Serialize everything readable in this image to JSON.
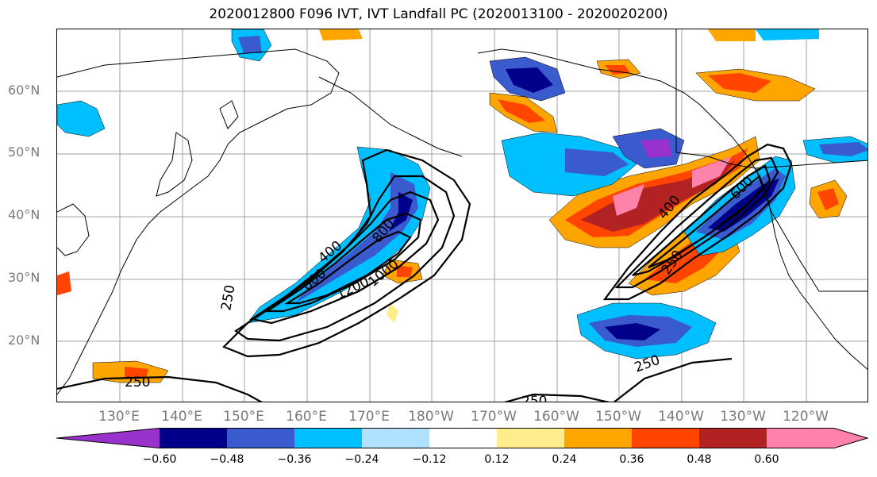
{
  "title": "2020012800 F096 IVT, IVT Landfall PC (2020013100 - 2020020200)",
  "map": {
    "lat_labels": [
      "60°N",
      "50°N",
      "40°N",
      "30°N",
      "20°N"
    ],
    "lon_labels": [
      "130°E",
      "140°E",
      "150°E",
      "160°E",
      "170°E",
      "180°W",
      "170°W",
      "160°W",
      "150°W",
      "140°W",
      "130°W",
      "120°W"
    ],
    "contour_labels": [
      "250",
      "400",
      "600",
      "800",
      "1200",
      "1000",
      "400",
      "600",
      "250",
      "250",
      "250",
      "250"
    ]
  },
  "colorbar": {
    "tick_labels": [
      "−0.60",
      "−0.48",
      "−0.36",
      "−0.24",
      "−0.12",
      "0.12",
      "0.24",
      "0.36",
      "0.48",
      "0.60"
    ],
    "colors": [
      "#9932cc",
      "#00008b",
      "#3a5bcd",
      "#00bfff",
      "#b0e2ff",
      "#ffffff",
      "#ffec8b",
      "#ffa500",
      "#ff4500",
      "#b22222",
      "#ff82ab"
    ]
  }
}
